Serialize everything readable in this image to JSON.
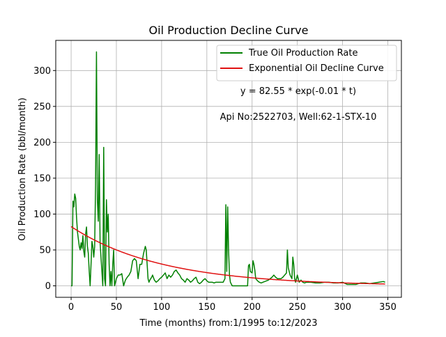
{
  "chart_data": {
    "type": "line",
    "title": "Oil Production Decline Curve",
    "xlabel": "Time (months) from:1/1995 to:12/2023",
    "ylabel": "Oil Production Rate (bbl/month)",
    "xlim": [
      -17,
      365
    ],
    "ylim": [
      -16,
      342
    ],
    "xticks": [
      0,
      50,
      100,
      150,
      200,
      250,
      300,
      350
    ],
    "yticks": [
      0,
      50,
      100,
      150,
      200,
      250,
      300
    ],
    "grid": true,
    "legend_position": "top-right",
    "annotations": [
      "y = 82.55 * exp(-0.01 * t)",
      "Api No:2522703, Well:62-1-STX-10"
    ],
    "series": [
      {
        "name": "True Oil Production Rate",
        "color": "#008000",
        "x": [
          0,
          1,
          2,
          3,
          4,
          5,
          6,
          7,
          8,
          9,
          10,
          11,
          12,
          13,
          14,
          15,
          16,
          17,
          18,
          19,
          20,
          21,
          22,
          23,
          24,
          25,
          26,
          27,
          28,
          29,
          30,
          31,
          32,
          33,
          34,
          35,
          36,
          37,
          38,
          39,
          40,
          41,
          42,
          43,
          44,
          45,
          46,
          47,
          48,
          50,
          52,
          54,
          56,
          58,
          60,
          62,
          64,
          66,
          68,
          70,
          72,
          74,
          76,
          78,
          80,
          82,
          83,
          84,
          85,
          86,
          87,
          88,
          89,
          90,
          92,
          94,
          96,
          98,
          100,
          102,
          104,
          106,
          108,
          110,
          112,
          114,
          116,
          118,
          120,
          122,
          124,
          126,
          128,
          130,
          132,
          134,
          136,
          138,
          140,
          142,
          144,
          146,
          148,
          150,
          152,
          154,
          156,
          158,
          160,
          162,
          164,
          166,
          168,
          170,
          171,
          172,
          173,
          174,
          175,
          176,
          178,
          180,
          185,
          190,
          195,
          196,
          197,
          198,
          200,
          201,
          202,
          203,
          204,
          206,
          208,
          210,
          212,
          214,
          216,
          218,
          220,
          222,
          224,
          226,
          228,
          230,
          232,
          234,
          236,
          238,
          239,
          240,
          241,
          242,
          244,
          245,
          246,
          247,
          248,
          250,
          252,
          254,
          256,
          258,
          260,
          265,
          270,
          275,
          280,
          285,
          290,
          295,
          300,
          305,
          310,
          315,
          320,
          325,
          330,
          335,
          340,
          345,
          347
        ],
        "y": [
          0,
          0,
          118,
          110,
          128,
          122,
          95,
          75,
          65,
          55,
          50,
          60,
          52,
          70,
          48,
          40,
          72,
          82,
          55,
          45,
          20,
          0,
          30,
          62,
          55,
          40,
          55,
          140,
          326,
          120,
          90,
          183,
          60,
          40,
          20,
          0,
          193,
          10,
          0,
          120,
          75,
          100,
          30,
          0,
          20,
          0,
          30,
          50,
          0,
          10,
          15,
          15,
          17,
          0,
          8,
          12,
          15,
          20,
          35,
          38,
          35,
          10,
          30,
          30,
          45,
          55,
          50,
          30,
          10,
          5,
          8,
          10,
          12,
          15,
          8,
          5,
          7,
          10,
          12,
          15,
          18,
          10,
          15,
          12,
          15,
          20,
          22,
          18,
          15,
          10,
          8,
          5,
          10,
          8,
          5,
          7,
          10,
          12,
          5,
          3,
          5,
          8,
          10,
          7,
          5,
          5,
          5,
          4,
          5,
          5,
          5,
          5,
          5,
          10,
          113,
          20,
          110,
          50,
          15,
          5,
          0,
          0,
          0,
          0,
          0,
          28,
          30,
          20,
          18,
          35,
          30,
          22,
          10,
          7,
          5,
          4,
          5,
          6,
          7,
          8,
          10,
          12,
          15,
          12,
          10,
          10,
          10,
          12,
          15,
          18,
          50,
          25,
          20,
          15,
          10,
          40,
          30,
          10,
          5,
          15,
          5,
          8,
          5,
          4,
          5,
          5,
          4,
          4,
          5,
          5,
          4,
          4,
          5,
          2,
          2,
          2,
          4,
          4,
          3,
          4,
          5,
          6,
          5
        ],
        "stroke_width": 1.5
      },
      {
        "name": "Exponential Oil Decline Curve",
        "color": "#e01010",
        "equation": "y = 82.55 * exp(-0.01 * t)",
        "a": 82.55,
        "b": 0.01,
        "x_range": [
          0,
          347
        ],
        "stroke_width": 1.5
      }
    ]
  }
}
